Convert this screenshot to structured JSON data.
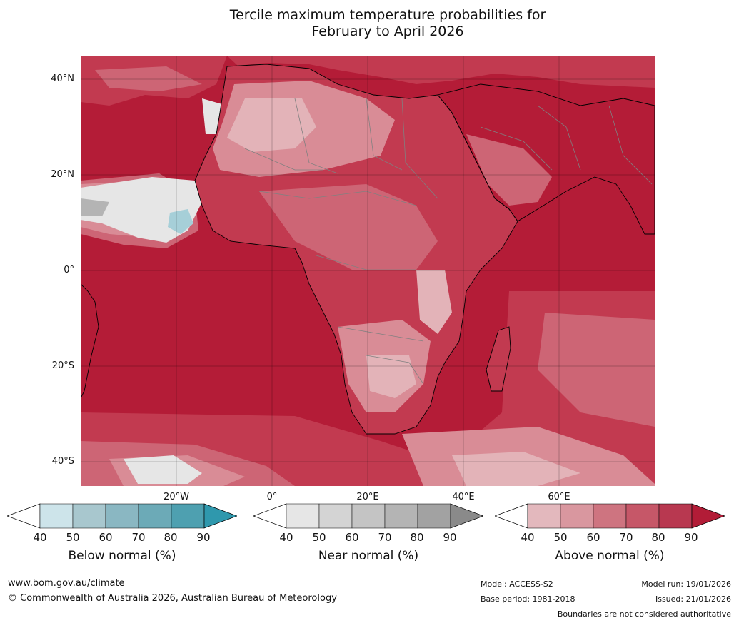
{
  "title": {
    "line1": "Tercile maximum temperature probabilities for",
    "line2": "February to April 2026"
  },
  "map": {
    "lat_labels": [
      "40°N",
      "20°N",
      "0°",
      "20°S",
      "40°S"
    ],
    "lon_labels": [
      "20°W",
      "0°",
      "20°E",
      "40°E",
      "60°E"
    ],
    "colors": {
      "ocean_high": "#b41c37",
      "level_80": "#c23a50",
      "level_70": "#cd6575",
      "level_60": "#d98c96",
      "level_50": "#e3b3b8",
      "near_grey": "#e6e6e6",
      "below_blue": "#a6cfd8",
      "coast": "#000000",
      "border": "#808080",
      "grid": "#000000"
    }
  },
  "colorbars": {
    "tick_values": [
      "40",
      "50",
      "60",
      "70",
      "80",
      "90"
    ],
    "below": {
      "label": "Below normal (%)",
      "colors": [
        "#cde4ea",
        "#a8c7ce",
        "#8ab7c2",
        "#6caab7",
        "#4ea0b0",
        "#2f98ad"
      ]
    },
    "near": {
      "label": "Near normal (%)",
      "colors": [
        "#e6e6e6",
        "#d4d4d4",
        "#c4c4c4",
        "#b4b4b4",
        "#a2a2a2",
        "#8a8a8a"
      ]
    },
    "above": {
      "label": "Above normal (%)",
      "colors": [
        "#e3b8bd",
        "#d9979f",
        "#ce7480",
        "#c65768",
        "#b83850",
        "#b21c37"
      ]
    }
  },
  "footer": {
    "website": "www.bom.gov.au/climate",
    "copyright": "© Commonwealth of Australia 2026, Australian Bureau of Meteorology",
    "model": "Model: ACCESS-S2",
    "base_period": "Base period: 1981-2018",
    "model_run": "Model run: 19/01/2026",
    "issued": "Issued: 21/01/2026",
    "disclaimer": "Boundaries are not considered authoritative"
  }
}
